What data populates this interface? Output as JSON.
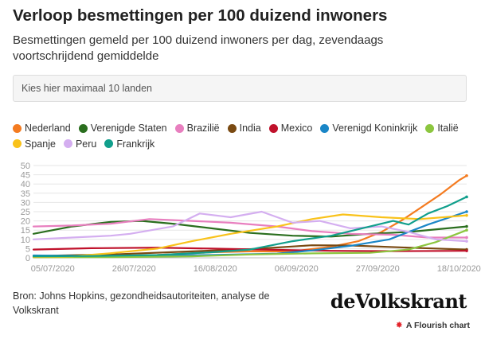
{
  "header": {
    "title": "Verloop besmettingen per 100 duizend inwoners",
    "subtitle": "Besmettingen gemeld per 100 duizend inwoners per dag, zevendaags voortschrijdend gemiddelde"
  },
  "controls": {
    "country_select_placeholder": "Kies hier maximaal 10 landen"
  },
  "footer": {
    "source": "Bron: Johns Hopkins, gezondheidsautoriteiten, analyse de Volkskrant",
    "brand": "deVolkskrant",
    "flourish_label": "A Flourish chart",
    "flourish_icon": "flourish-star-icon"
  },
  "chart_data": {
    "type": "line",
    "title": "Verloop besmettingen per 100 duizend inwoners",
    "subtitle": "Besmettingen gemeld per 100 duizend inwoners per dag, zevendaags voortschrijdend gemiddelde",
    "xlabel": "",
    "ylabel": "",
    "xlim": [
      "2020-06-30",
      "2020-10-20"
    ],
    "ylim": [
      0,
      50
    ],
    "yticks": [
      0,
      5,
      10,
      15,
      20,
      25,
      30,
      35,
      40,
      45,
      50
    ],
    "xticks": [
      {
        "date": "2020-07-05",
        "label": "05/07/2020"
      },
      {
        "date": "2020-07-26",
        "label": "26/07/2020"
      },
      {
        "date": "2020-08-16",
        "label": "16/08/2020"
      },
      {
        "date": "2020-09-06",
        "label": "06/09/2020"
      },
      {
        "date": "2020-09-27",
        "label": "27/09/2020"
      },
      {
        "date": "2020-10-18",
        "label": "18/10/2020"
      }
    ],
    "grid": true,
    "legend_position": "top",
    "series": [
      {
        "name": "Nederland",
        "color": "#f47b20",
        "x": [
          "2020-06-30",
          "2020-07-15",
          "2020-08-01",
          "2020-08-15",
          "2020-08-25",
          "2020-09-05",
          "2020-09-15",
          "2020-09-22",
          "2020-09-28",
          "2020-10-03",
          "2020-10-08",
          "2020-10-13",
          "2020-10-18",
          "2020-10-20"
        ],
        "y": [
          0.3,
          0.5,
          1.5,
          3,
          3.5,
          3.5,
          6,
          9,
          14,
          20,
          27,
          34,
          42,
          44.5
        ]
      },
      {
        "name": "Verenigde Staten",
        "color": "#2a6e1e",
        "x": [
          "2020-06-30",
          "2020-07-10",
          "2020-07-20",
          "2020-07-28",
          "2020-08-05",
          "2020-08-15",
          "2020-08-25",
          "2020-09-05",
          "2020-09-15",
          "2020-09-25",
          "2020-10-05",
          "2020-10-15",
          "2020-10-20"
        ],
        "y": [
          13,
          17,
          19.5,
          20,
          18.5,
          16,
          13.5,
          12,
          11.5,
          13,
          14,
          16,
          17
        ]
      },
      {
        "name": "Brazilië",
        "color": "#e87fbf",
        "x": [
          "2020-06-30",
          "2020-07-10",
          "2020-07-20",
          "2020-07-30",
          "2020-08-10",
          "2020-08-20",
          "2020-09-01",
          "2020-09-10",
          "2020-09-20",
          "2020-10-01",
          "2020-10-10",
          "2020-10-20"
        ],
        "y": [
          17,
          17.5,
          18.5,
          21,
          20,
          19,
          17,
          14.5,
          13,
          12.5,
          11,
          11
        ]
      },
      {
        "name": "India",
        "color": "#7a4a12",
        "x": [
          "2020-06-30",
          "2020-07-20",
          "2020-08-10",
          "2020-08-25",
          "2020-09-10",
          "2020-09-20",
          "2020-10-05",
          "2020-10-20"
        ],
        "y": [
          1,
          1.8,
          3.5,
          4.7,
          6.8,
          6.7,
          5.5,
          4.5
        ]
      },
      {
        "name": "Mexico",
        "color": "#c0112b",
        "x": [
          "2020-06-30",
          "2020-07-15",
          "2020-08-01",
          "2020-08-15",
          "2020-09-01",
          "2020-09-15",
          "2020-10-01",
          "2020-10-20"
        ],
        "y": [
          4.5,
          5.2,
          5.5,
          5,
          4.3,
          3.8,
          3.6,
          3.8
        ]
      },
      {
        "name": "Verenigd Koninkrijk",
        "color": "#1a86c7",
        "x": [
          "2020-06-30",
          "2020-07-15",
          "2020-08-01",
          "2020-08-15",
          "2020-09-01",
          "2020-09-10",
          "2020-09-20",
          "2020-09-30",
          "2020-10-10",
          "2020-10-20"
        ],
        "y": [
          1.3,
          1,
          1.2,
          1.5,
          2.3,
          4,
          6.5,
          10,
          18,
          25
        ]
      },
      {
        "name": "Italië",
        "color": "#8cc63f",
        "x": [
          "2020-06-30",
          "2020-07-20",
          "2020-08-10",
          "2020-08-25",
          "2020-09-10",
          "2020-09-25",
          "2020-10-05",
          "2020-10-12",
          "2020-10-20"
        ],
        "y": [
          0.3,
          0.4,
          0.8,
          1.8,
          2.4,
          2.7,
          4.5,
          8.5,
          15
        ]
      },
      {
        "name": "Spanje",
        "color": "#f9c21a",
        "x": [
          "2020-06-30",
          "2020-07-10",
          "2020-07-20",
          "2020-08-01",
          "2020-08-10",
          "2020-08-20",
          "2020-09-01",
          "2020-09-10",
          "2020-09-18",
          "2020-09-28",
          "2020-10-08",
          "2020-10-20"
        ],
        "y": [
          0.5,
          0.8,
          2.5,
          5,
          9,
          13,
          17,
          21,
          23.5,
          22,
          21,
          23
        ]
      },
      {
        "name": "Peru",
        "color": "#d4aef0",
        "x": [
          "2020-06-30",
          "2020-07-10",
          "2020-07-20",
          "2020-07-25",
          "2020-08-05",
          "2020-08-12",
          "2020-08-20",
          "2020-08-28",
          "2020-09-05",
          "2020-09-12",
          "2020-09-20",
          "2020-09-28",
          "2020-10-05",
          "2020-10-12",
          "2020-10-20"
        ],
        "y": [
          10,
          11,
          12,
          13,
          17,
          24,
          22,
          25,
          19,
          20,
          16,
          17,
          14,
          10,
          9
        ]
      },
      {
        "name": "Frankrijk",
        "color": "#119f8c",
        "x": [
          "2020-06-30",
          "2020-07-15",
          "2020-08-01",
          "2020-08-15",
          "2020-08-25",
          "2020-09-05",
          "2020-09-15",
          "2020-09-25",
          "2020-10-01",
          "2020-10-05",
          "2020-10-10",
          "2020-10-15",
          "2020-10-20"
        ],
        "y": [
          0.8,
          1,
          1.5,
          3,
          4.5,
          9,
          12,
          17,
          20,
          18,
          24,
          28,
          33
        ]
      }
    ]
  }
}
